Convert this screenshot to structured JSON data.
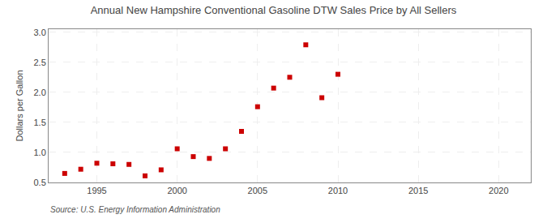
{
  "chart_data": {
    "type": "scatter",
    "title": "Annual New Hampshire Conventional Gasoline DTW Sales Price by All Sellers",
    "ylabel": "Dollars per Gallon",
    "annotations": [
      "Source: U.S. Energy Information Administration"
    ],
    "x": [
      1993,
      1994,
      1995,
      1996,
      1997,
      1998,
      1999,
      2000,
      2001,
      2002,
      2003,
      2004,
      2005,
      2006,
      2007,
      2008,
      2009,
      2010
    ],
    "values": [
      0.65,
      0.72,
      0.82,
      0.81,
      0.8,
      0.61,
      0.71,
      1.06,
      0.93,
      0.9,
      1.06,
      1.35,
      1.76,
      2.07,
      2.25,
      2.79,
      1.91,
      2.3
    ],
    "color": "#cc0000",
    "marker": "square",
    "xlim": [
      1992,
      2022
    ],
    "xticks": [
      1995,
      2000,
      2005,
      2010,
      2015,
      2020
    ],
    "ylim": [
      0.5,
      3.05
    ],
    "yticks": [
      0.5,
      {
        "value": 1,
        "label": "1.0"
      },
      1.5,
      {
        "value": 2,
        "label": "2.0"
      },
      2.5,
      {
        "value": 3,
        "label": "3.0"
      }
    ],
    "grid": true
  }
}
